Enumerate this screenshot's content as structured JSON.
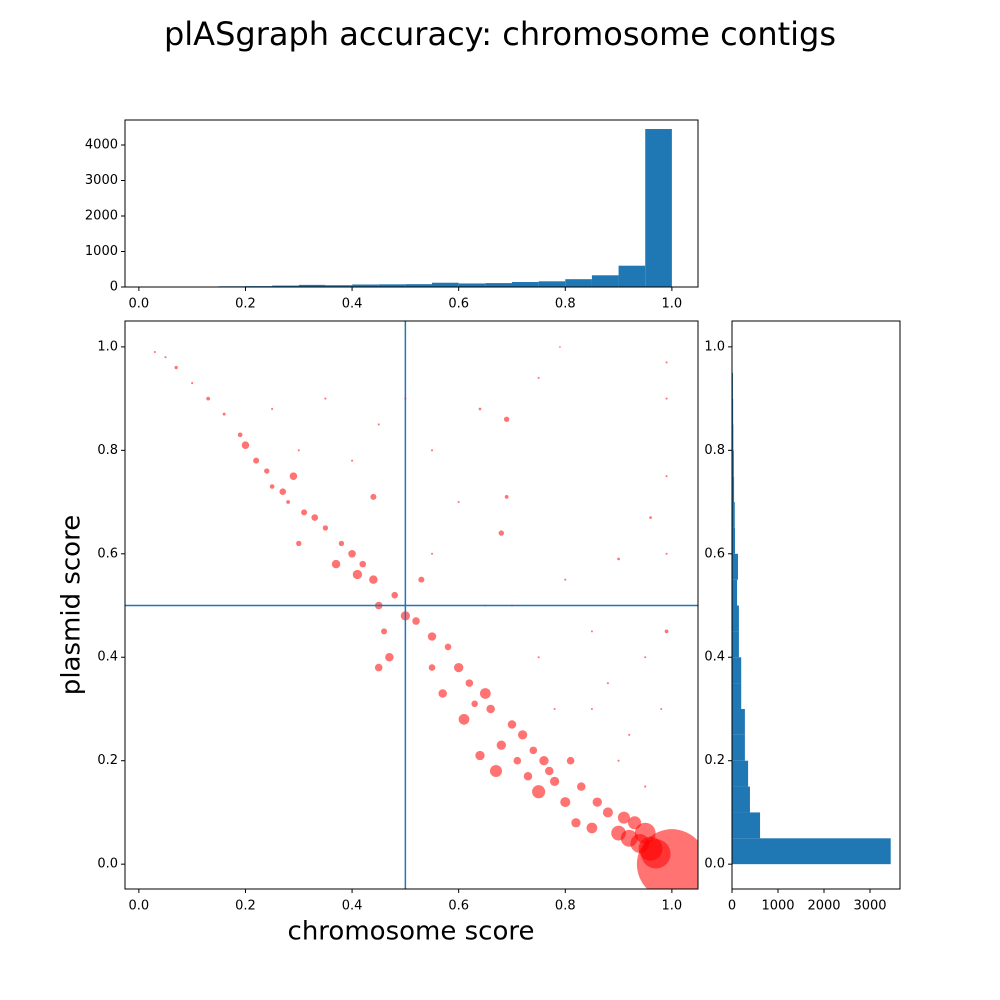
{
  "chart_data": [
    {
      "type": "scatter",
      "title": "plASgraph accuracy: chromosome contigs",
      "xlabel": "chromosome score",
      "ylabel": "plasmid score",
      "color": "#ff0000",
      "alpha": 0.55,
      "vline": 0.5,
      "hline": 0.5,
      "line_color": "#1f77b4",
      "xlim": [
        -0.026,
        1.049
      ],
      "ylim": [
        -0.048,
        1.05
      ],
      "xticks": [
        {
          "value": 0,
          "label": "0.0"
        },
        0.2,
        0.4,
        0.6,
        0.8,
        {
          "value": 1,
          "label": "1.0"
        }
      ],
      "yticks": [
        {
          "value": 0,
          "label": "0.0"
        },
        0.2,
        0.4,
        0.6,
        0.8,
        {
          "value": 1,
          "label": "1.0"
        }
      ],
      "x": [
        0.03,
        0.05,
        0.07,
        0.1,
        0.13,
        0.16,
        0.19,
        0.2,
        0.22,
        0.24,
        0.25,
        0.27,
        0.28,
        0.29,
        0.3,
        0.31,
        0.33,
        0.35,
        0.37,
        0.38,
        0.4,
        0.41,
        0.42,
        0.44,
        0.44,
        0.45,
        0.45,
        0.46,
        0.47,
        0.48,
        0.5,
        0.52,
        0.53,
        0.55,
        0.55,
        0.57,
        0.58,
        0.6,
        0.61,
        0.62,
        0.63,
        0.64,
        0.65,
        0.66,
        0.67,
        0.68,
        0.7,
        0.71,
        0.72,
        0.73,
        0.74,
        0.75,
        0.76,
        0.77,
        0.78,
        0.8,
        0.81,
        0.82,
        0.83,
        0.85,
        0.86,
        0.88,
        0.9,
        0.91,
        0.92,
        0.93,
        0.94,
        0.95,
        0.96,
        0.97,
        1.0,
        0.69,
        0.68,
        0.69,
        0.64,
        0.75,
        0.79,
        0.9,
        0.96,
        0.99,
        0.99,
        0.99,
        0.99,
        0.99,
        0.98,
        0.95,
        0.85,
        0.8,
        0.7,
        0.6,
        0.55,
        0.5,
        0.45,
        0.4,
        0.35,
        0.3,
        0.25,
        0.55,
        0.65,
        0.75,
        0.85,
        0.9,
        0.95,
        0.88,
        0.78,
        0.92
      ],
      "y": [
        0.99,
        0.98,
        0.96,
        0.93,
        0.9,
        0.87,
        0.83,
        0.81,
        0.78,
        0.76,
        0.73,
        0.72,
        0.7,
        0.75,
        0.62,
        0.68,
        0.67,
        0.65,
        0.58,
        0.62,
        0.6,
        0.56,
        0.58,
        0.55,
        0.71,
        0.5,
        0.38,
        0.45,
        0.4,
        0.52,
        0.48,
        0.47,
        0.55,
        0.44,
        0.38,
        0.33,
        0.42,
        0.38,
        0.28,
        0.35,
        0.31,
        0.21,
        0.33,
        0.3,
        0.18,
        0.23,
        0.27,
        0.2,
        0.25,
        0.17,
        0.22,
        0.14,
        0.2,
        0.18,
        0.16,
        0.12,
        0.2,
        0.08,
        0.15,
        0.07,
        0.12,
        0.1,
        0.06,
        0.09,
        0.05,
        0.08,
        0.04,
        0.06,
        0.03,
        0.02,
        0.0,
        0.86,
        0.64,
        0.71,
        0.88,
        0.94,
        1.0,
        0.59,
        0.67,
        0.97,
        0.9,
        0.75,
        0.6,
        0.45,
        0.3,
        0.4,
        0.45,
        0.55,
        0.5,
        0.7,
        0.8,
        0.9,
        0.85,
        0.78,
        0.9,
        0.8,
        0.88,
        0.6,
        0.5,
        0.4,
        0.3,
        0.2,
        0.15,
        0.35,
        0.3,
        0.25
      ],
      "sizes": [
        3,
        3,
        8,
        3,
        10,
        6,
        15,
        40,
        25,
        20,
        15,
        30,
        10,
        40,
        20,
        25,
        30,
        20,
        50,
        20,
        40,
        60,
        30,
        50,
        25,
        40,
        40,
        25,
        50,
        30,
        60,
        40,
        25,
        50,
        30,
        50,
        30,
        60,
        80,
        40,
        30,
        60,
        80,
        50,
        100,
        60,
        50,
        40,
        60,
        50,
        40,
        120,
        60,
        50,
        60,
        70,
        40,
        60,
        50,
        80,
        60,
        70,
        150,
        100,
        200,
        120,
        250,
        300,
        400,
        600,
        3400,
        20,
        20,
        10,
        5,
        3,
        2,
        5,
        5,
        3,
        3,
        3,
        3,
        10,
        3,
        3,
        3,
        3,
        3,
        3,
        3,
        3,
        3,
        3,
        3,
        3,
        3,
        3,
        3,
        3,
        3,
        3,
        3,
        3,
        3,
        3
      ]
    },
    {
      "type": "histogram",
      "orientation": "vertical",
      "color": "#1f77b4",
      "bins": [
        0,
        0.05,
        0.1,
        0.15,
        0.2,
        0.25,
        0.3,
        0.35,
        0.4,
        0.45,
        0.5,
        0.55,
        0.6,
        0.65,
        0.7,
        0.75,
        0.8,
        0.85,
        0.9,
        0.95,
        1.0
      ],
      "counts": [
        0,
        0,
        10,
        20,
        25,
        40,
        60,
        50,
        70,
        75,
        80,
        120,
        100,
        110,
        140,
        160,
        220,
        330,
        600,
        4450
      ],
      "xlim": [
        -0.026,
        1.049
      ],
      "ylim": [
        0,
        4704
      ],
      "xticks": [
        {
          "value": 0,
          "label": "0.0"
        },
        0.2,
        0.4,
        0.6,
        0.8,
        {
          "value": 1,
          "label": "1.0"
        }
      ],
      "yticks": [
        0,
        1000,
        2000,
        3000,
        4000
      ]
    },
    {
      "type": "histogram",
      "orientation": "horizontal",
      "color": "#1f77b4",
      "bins": [
        0,
        0.05,
        0.1,
        0.15,
        0.2,
        0.25,
        0.3,
        0.35,
        0.4,
        0.45,
        0.5,
        0.55,
        0.6,
        0.65,
        0.7,
        0.75,
        0.8,
        0.85,
        0.9,
        0.95,
        1.0
      ],
      "counts": [
        3450,
        610,
        390,
        350,
        280,
        280,
        200,
        200,
        150,
        150,
        110,
        130,
        65,
        60,
        45,
        40,
        30,
        25,
        20,
        10
      ],
      "xlim": [
        0,
        3652
      ],
      "ylim": [
        -0.048,
        1.05
      ],
      "xticks": [
        0,
        1000,
        2000,
        3000
      ],
      "yticks": [
        {
          "value": 0,
          "label": "0.0"
        },
        0.2,
        0.4,
        0.6,
        0.8,
        {
          "value": 1,
          "label": "1.0"
        }
      ]
    }
  ]
}
